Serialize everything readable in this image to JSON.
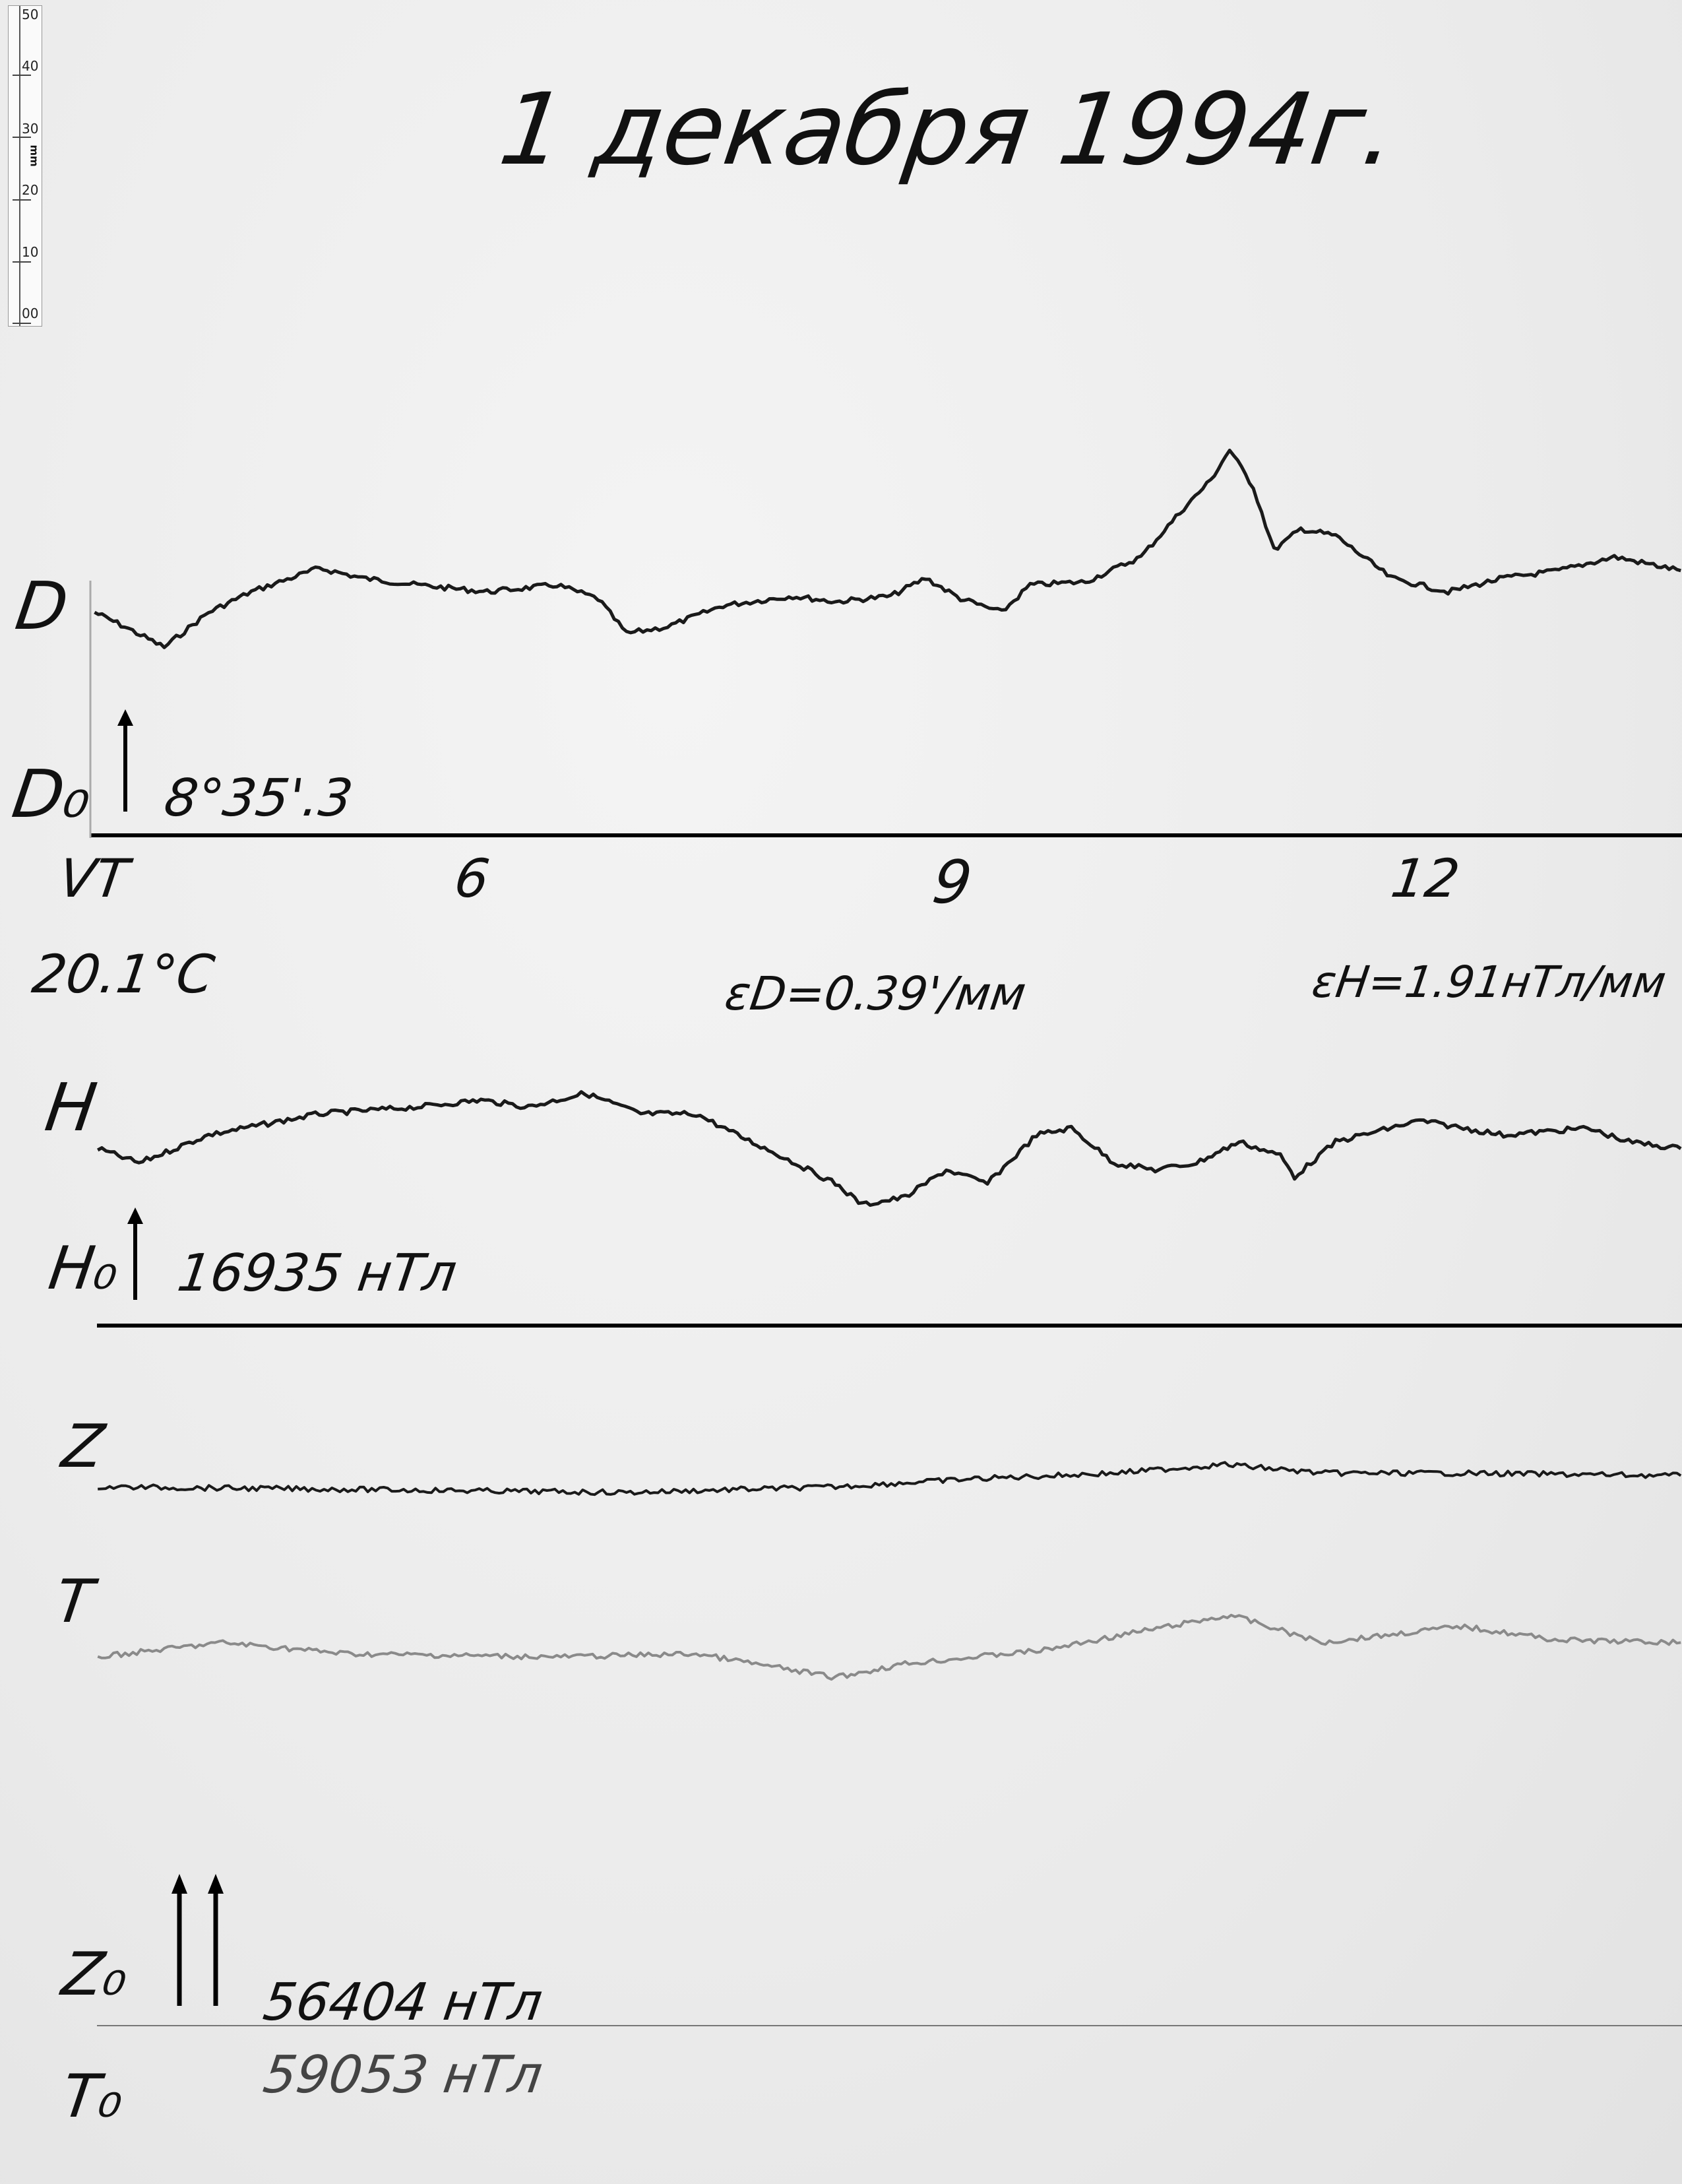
{
  "title": "1 декабря 1994г.",
  "ruler": {
    "unit": "mm",
    "labels": [
      "50",
      "40",
      "30",
      "20",
      "10",
      "00"
    ]
  },
  "labels": {
    "d": "D",
    "d0": "D₀",
    "d0_value": "8°35'.3",
    "time_zone": "VT",
    "temperature": "20.1°C",
    "eps_d": "εD=0.39'/мм",
    "eps_h": "εH=1.91нТл/мм",
    "h": "H",
    "h0": "H₀",
    "h0_value": "16935 нТл",
    "z": "Z",
    "t": "T",
    "z0": "Z₀",
    "z0_value": "56404 нТл",
    "t0": "T₀",
    "t0_value": "59053 нТл"
  },
  "chart_data": {
    "type": "line",
    "xlabel": "VT",
    "x_ticks": [
      "6",
      "9",
      "12"
    ],
    "x_unit": "hour",
    "y_unit": "mm",
    "colors": {
      "trace": "#1a1a1a",
      "t_trace": "#8a8a8a",
      "baseline": "#000000"
    },
    "series": [
      {
        "name": "D",
        "x": [
          3.61,
          3.8,
          4.05,
          4.33,
          4.6,
          5.03,
          5.3,
          5.65,
          6.09,
          6.53,
          6.79,
          6.97,
          7.23,
          7.58,
          8.02,
          8.29,
          8.64,
          8.86,
          9.08,
          9.34,
          9.52,
          9.87,
          10.22,
          10.49,
          10.66,
          10.78,
          10.93,
          11.06,
          11.23,
          11.45,
          11.8,
          12.16,
          12.51,
          12.86,
          13.21,
          13.63
        ],
        "y": [
          35.8,
          33.5,
          30.2,
          35.8,
          39.1,
          42.9,
          41.3,
          40.2,
          39.1,
          40.2,
          38.0,
          32.4,
          33.5,
          36.9,
          38.4,
          37.5,
          38.4,
          41.3,
          38.0,
          35.8,
          40.2,
          40.7,
          44.7,
          52.5,
          57.0,
          61.9,
          55.9,
          45.8,
          49.2,
          48.1,
          41.3,
          39.1,
          41.3,
          42.5,
          44.7,
          42.5
        ]
      },
      {
        "name": "H",
        "x": [
          3.63,
          3.89,
          4.33,
          5.03,
          5.65,
          6.05,
          6.35,
          6.71,
          7.06,
          7.41,
          7.67,
          7.94,
          8.29,
          8.46,
          8.73,
          8.99,
          9.25,
          9.56,
          9.78,
          10.05,
          10.31,
          10.57,
          10.84,
          11.1,
          11.19,
          11.45,
          11.98,
          12.51,
          13.04,
          13.3,
          13.63
        ],
        "y": [
          28.4,
          26.1,
          30.6,
          34.0,
          35.1,
          36.2,
          35.1,
          37.3,
          34.0,
          34.0,
          30.6,
          27.3,
          22.8,
          19.4,
          20.6,
          25.0,
          22.8,
          30.6,
          31.7,
          26.1,
          25.0,
          26.1,
          29.5,
          27.3,
          23.9,
          29.5,
          32.9,
          30.6,
          31.7,
          29.5,
          28.4
        ]
      },
      {
        "name": "Z",
        "x": [
          3.63,
          5.21,
          6.97,
          8.29,
          9.17,
          10.05,
          10.75,
          11.36,
          12.24,
          13.63
        ],
        "y": [
          86.5,
          86.1,
          85.6,
          86.5,
          87.8,
          88.7,
          90.1,
          88.7,
          88.7,
          88.3
        ]
      },
      {
        "name": "T",
        "x": [
          3.63,
          4.42,
          5.21,
          6.53,
          7.41,
          8.29,
          8.73,
          9.61,
          10.22,
          10.79,
          11.36,
          12.24,
          12.86,
          13.63
        ],
        "y": [
          59.2,
          61.5,
          59.7,
          59.2,
          59.7,
          55.9,
          58.1,
          60.3,
          63.3,
          65.9,
          61.5,
          64.1,
          61.9,
          61.5
        ]
      }
    ]
  }
}
